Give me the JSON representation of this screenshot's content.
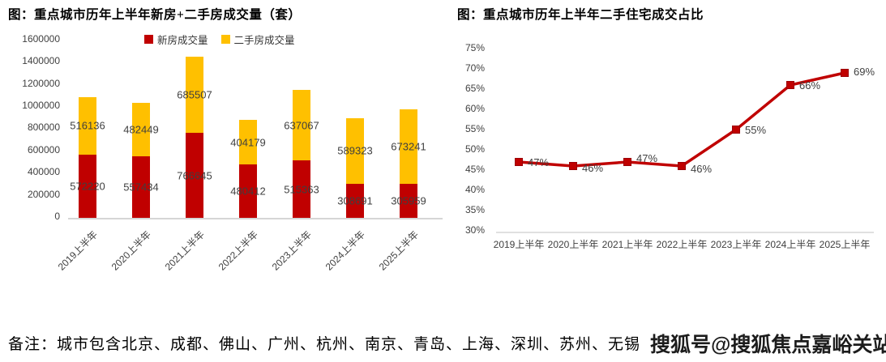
{
  "chart_data": [
    {
      "type": "bar",
      "stacked": true,
      "title": "图：重点城市历年上半年新房+二手房成交量（套）",
      "categories": [
        "2019上半年",
        "2020上半年",
        "2021上半年",
        "2022上半年",
        "2023上半年",
        "2024上半年",
        "2025上半年"
      ],
      "series": [
        {
          "name": "新房成交量",
          "color": "#C00000",
          "values": [
            572220,
            557434,
            766645,
            480412,
            515363,
            308691,
            305959
          ]
        },
        {
          "name": "二手房成交量",
          "color": "#FFC000",
          "values": [
            516136,
            482449,
            685507,
            404179,
            637067,
            589323,
            673241
          ]
        }
      ],
      "ylim": [
        0,
        1600000
      ],
      "yticks": [
        "0",
        "200000",
        "400000",
        "600000",
        "800000",
        "1000000",
        "1200000",
        "1400000",
        "1600000"
      ],
      "xlabel": "",
      "ylabel": "",
      "grid": false,
      "legend_position": "top"
    },
    {
      "type": "line",
      "title": "图：重点城市历年上半年二手住宅成交占比",
      "categories": [
        "2019上半年",
        "2020上半年",
        "2021上半年",
        "2022上半年",
        "2023上半年",
        "2024上半年",
        "2025上半年"
      ],
      "values": [
        47,
        46,
        47,
        46,
        55,
        66,
        69
      ],
      "point_labels": [
        "47%",
        "46%",
        "47%",
        "46%",
        "55%",
        "66%",
        "69%"
      ],
      "ylim": [
        30,
        75
      ],
      "yticks": [
        "30%",
        "35%",
        "40%",
        "45%",
        "50%",
        "55%",
        "60%",
        "65%",
        "70%",
        "75%"
      ],
      "line_color": "#C00000",
      "marker": "square",
      "xlabel": "",
      "ylabel": "",
      "grid": false,
      "legend_position": "none"
    }
  ],
  "colors": {
    "new_home_bar": "#C00000",
    "second_hand_bar": "#FFC000",
    "line": "#C00000",
    "marker_border": "#9C0006",
    "axis_line": "#d6d6d6",
    "tick_text": "#404040",
    "data_label": "#3f3f3f"
  },
  "note": {
    "text": "备注：城市包含北京、成都、佛山、广州、杭州、南京、青岛、上海、深圳、苏州、无锡"
  },
  "watermark": {
    "text": "搜狐号@搜狐焦点嘉峪关站"
  }
}
